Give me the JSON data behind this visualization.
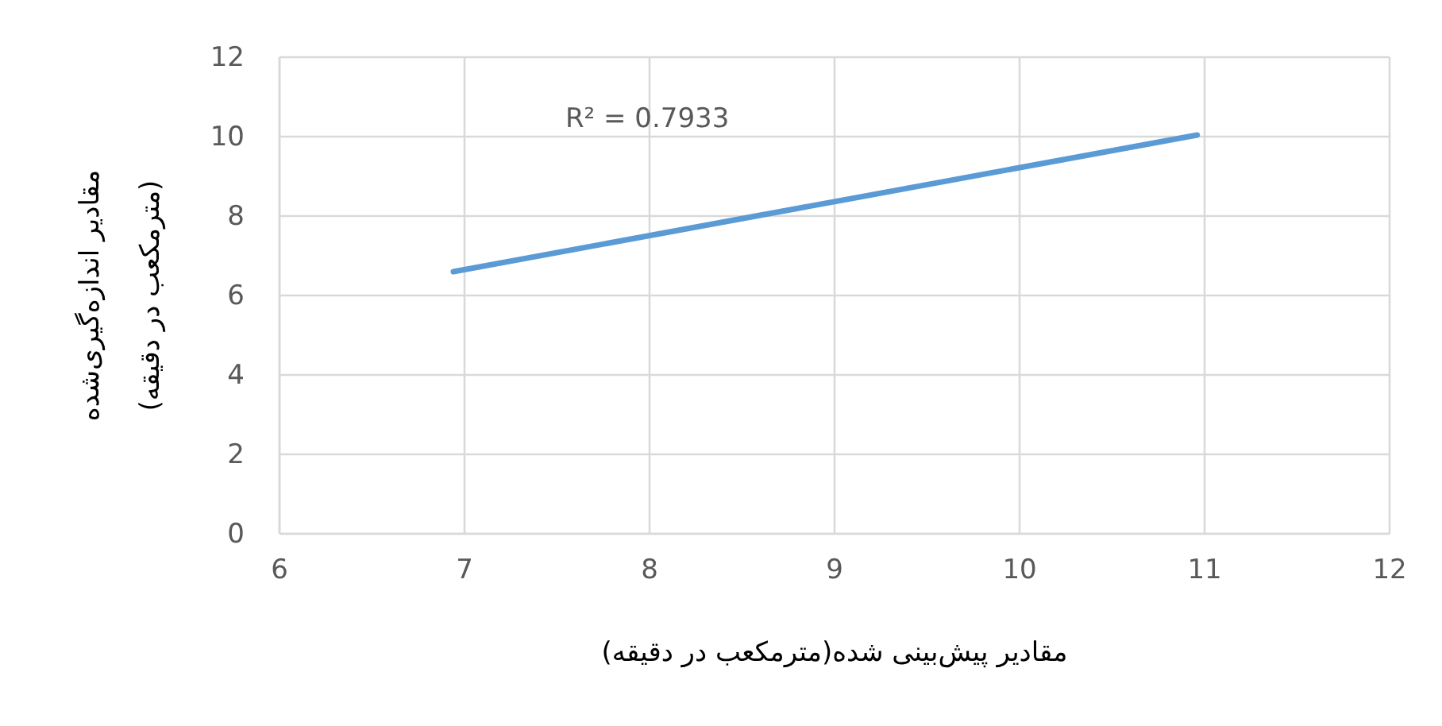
{
  "chart_data": {
    "type": "line",
    "x": [
      6.94,
      10.96
    ],
    "series": [
      {
        "color": "#5b9bd5",
        "values": [
          6.6,
          10.04
        ]
      }
    ],
    "xlim": [
      6,
      12
    ],
    "xticks": [
      6,
      7,
      8,
      9,
      10,
      11,
      12
    ],
    "ylim": [
      0,
      12
    ],
    "yticks": [
      0,
      2,
      4,
      6,
      8,
      10,
      12
    ],
    "xlabel": "مقادیر پیش‌بینی شده(مترمکعب در دقیقه)",
    "ylabel": "مقادیر اندازه‌گیری‌شده\n(مترمکعب در دقیقه)",
    "annotations": [
      "R² = 0.7933"
    ],
    "grid": true,
    "marker": "none",
    "line_style": "solid"
  }
}
